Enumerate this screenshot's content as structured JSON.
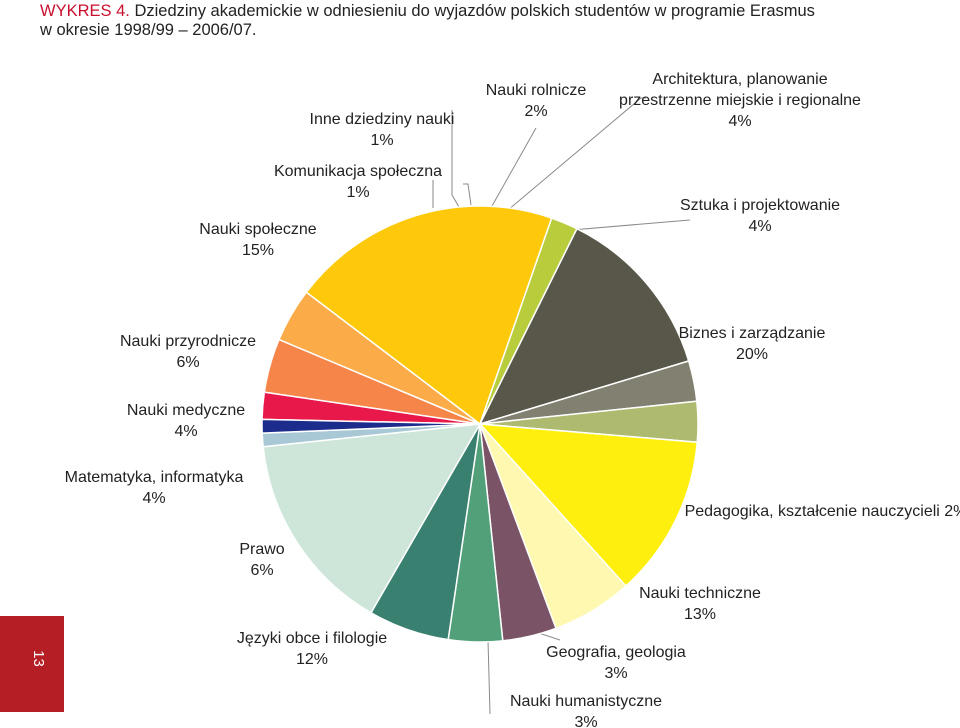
{
  "title": {
    "prefix": "WYKRES 4.",
    "line1": " Dziedziny akademickie w odniesieniu do wyjazdów polskich studentów w programie Erasmus",
    "line2": "w okresie 1998/99 – 2006/07."
  },
  "page_number": "13",
  "chart_data": {
    "type": "pie",
    "title": "WYKRES 4. Dziedziny akademickie w odniesieniu do wyjazdów polskich studentów w programie Erasmus w okresie 1998/99 – 2006/07.",
    "unit": "%",
    "slices": [
      {
        "label_lines": [
          "Nauki rolnicze",
          "2%"
        ],
        "value": 2,
        "color": "#e8194a"
      },
      {
        "label_lines": [
          "Architektura, planowanie",
          "przestrzenne miejskie i regionalne",
          "4%"
        ],
        "value": 4,
        "color": "#f58549"
      },
      {
        "label_lines": [
          "Sztuka i projektowanie",
          "4%"
        ],
        "value": 4,
        "color": "#fbab47"
      },
      {
        "label_lines": [
          "Biznes i zarządzanie",
          "20%"
        ],
        "value": 20,
        "color": "#fdc90a"
      },
      {
        "label_lines": [
          "Pedagogika, kształcenie nauczycieli 2%"
        ],
        "value": 2,
        "color": "#b9cd3c"
      },
      {
        "label_lines": [
          "Nauki techniczne",
          "13%"
        ],
        "value": 13,
        "color": "#58574a"
      },
      {
        "label_lines": [
          "Geografia, geologia",
          "3%"
        ],
        "value": 3,
        "color": "#828070"
      },
      {
        "label_lines": [
          "Nauki humanistyczne",
          "3%"
        ],
        "value": 3,
        "color": "#adba70"
      },
      {
        "label_lines": [
          "Języki obce i filologie",
          "12%"
        ],
        "value": 12,
        "color": "#ffef0f"
      },
      {
        "label_lines": [
          "Prawo",
          "6%"
        ],
        "value": 6,
        "color": "#fff8b0"
      },
      {
        "label_lines": [
          "Matematyka, informatyka",
          "4%"
        ],
        "value": 4,
        "color": "#7a5466"
      },
      {
        "label_lines": [
          "Nauki medyczne",
          "4%"
        ],
        "value": 4,
        "color": "#51a079"
      },
      {
        "label_lines": [
          "Nauki przyrodnicze",
          "6%"
        ],
        "value": 6,
        "color": "#3a8070"
      },
      {
        "label_lines": [
          "Nauki społeczne",
          "15%"
        ],
        "value": 15,
        "color": "#cde6d9"
      },
      {
        "label_lines": [
          "Inne dziedziny nauki",
          "1%"
        ],
        "value": 1,
        "color": "#a9c8d6"
      },
      {
        "label_lines": [
          "Komunikacja społeczna",
          "1%"
        ],
        "value": 1,
        "color": "#1c2c8c"
      }
    ]
  }
}
